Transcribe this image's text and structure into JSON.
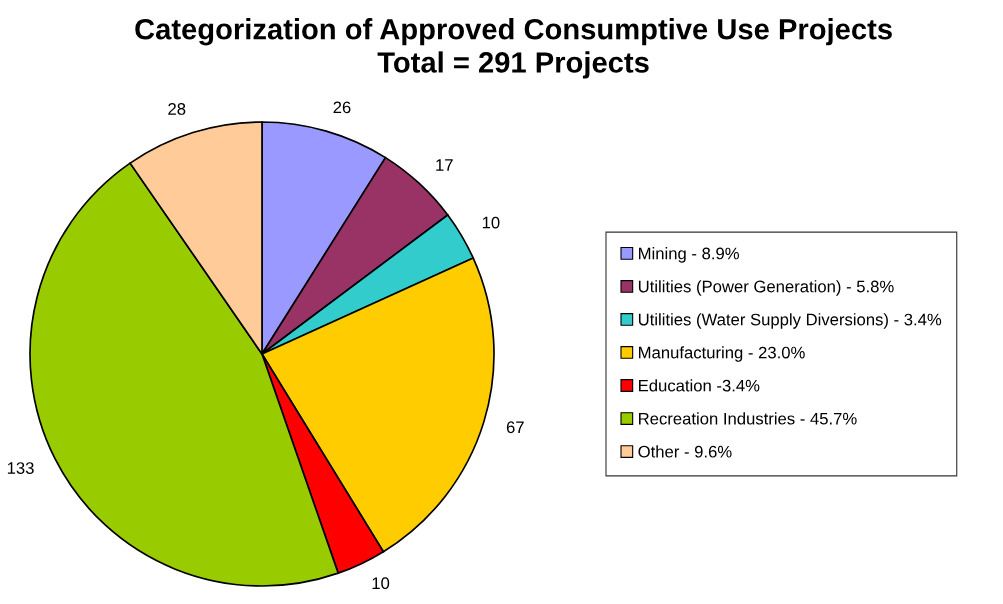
{
  "chart_data": {
    "type": "pie",
    "title": "Categorization of Approved Consumptive Use Projects",
    "subtitle": "Total = 291 Projects",
    "categories": [
      "Mining - 8.9%",
      "Utilities (Power Generation) - 5.8%",
      "Utilities (Water Supply Diversions) - 3.4%",
      "Manufacturing - 23.0%",
      "Education -3.4%",
      "Recreation Industries - 45.7%",
      "Other - 9.6%"
    ],
    "values": [
      26,
      17,
      10,
      67,
      10,
      133,
      28
    ],
    "colors": [
      "#9999ff",
      "#993366",
      "#33cccc",
      "#ffcc00",
      "#ff0000",
      "#99cc00",
      "#ffcc99"
    ],
    "data_labels": true,
    "legend": "right"
  }
}
